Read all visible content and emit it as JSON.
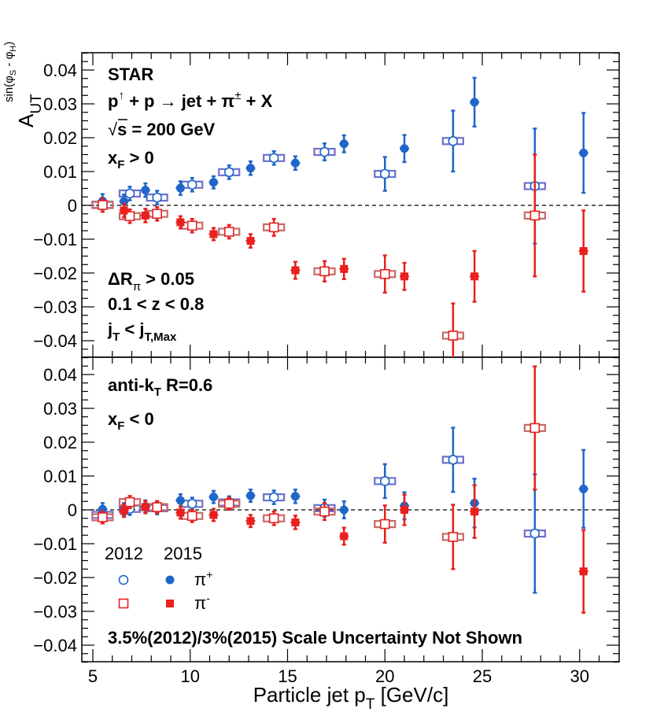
{
  "chart_data": [
    {
      "type": "scatter",
      "panel": "top",
      "xlabel": "",
      "ylabel": "A_UT^sin(φS - φH)",
      "ylim": [
        -0.045,
        0.045
      ],
      "xlim": [
        4.5,
        32
      ],
      "yticks": [
        0.04,
        0.03,
        0.02,
        0.01,
        0,
        -0.01,
        -0.02,
        -0.03,
        -0.04
      ],
      "ytick_labels": [
        "0.04",
        "0.03",
        "0.02",
        "0.01",
        "0",
        "−0.01",
        "−0.02",
        "−0.03",
        "−0.04"
      ],
      "series": [
        {
          "name": "π+ 2012",
          "color": "#1f66c9",
          "marker": "open-circle",
          "sysbox": true,
          "points": [
            [
              5.5,
              0.0002,
              0.002
            ],
            [
              6.9,
              0.0035,
              0.002
            ],
            [
              8.3,
              0.0023,
              0.002
            ],
            [
              10.1,
              0.0061,
              0.002
            ],
            [
              12.0,
              0.0098,
              0.002
            ],
            [
              14.3,
              0.014,
              0.002
            ],
            [
              16.9,
              0.0158,
              0.0025
            ],
            [
              20.0,
              0.0093,
              0.005
            ],
            [
              23.5,
              0.019,
              0.009
            ],
            [
              27.7,
              0.0057,
              0.017
            ]
          ]
        },
        {
          "name": "π+ 2015",
          "color": "#1f66c9",
          "marker": "filled-circle",
          "sysbox": false,
          "points": [
            [
              5.5,
              0.0013,
              0.002
            ],
            [
              6.6,
              0.0012,
              0.002
            ],
            [
              7.7,
              0.0045,
              0.002
            ],
            [
              9.5,
              0.0051,
              0.002
            ],
            [
              11.2,
              0.0068,
              0.0018
            ],
            [
              13.1,
              0.011,
              0.002
            ],
            [
              15.4,
              0.0125,
              0.002
            ],
            [
              17.9,
              0.0182,
              0.0025
            ],
            [
              21.0,
              0.0168,
              0.004
            ],
            [
              24.6,
              0.0305,
              0.0072
            ],
            [
              30.2,
              0.0155,
              0.0118
            ]
          ]
        },
        {
          "name": "π- 2012",
          "color": "#e8201e",
          "marker": "open-square",
          "sysbox": true,
          "points": [
            [
              5.5,
              0.0001,
              0.002
            ],
            [
              6.9,
              -0.0032,
              0.002
            ],
            [
              8.3,
              -0.0025,
              0.002
            ],
            [
              10.1,
              -0.006,
              0.002
            ],
            [
              12.0,
              -0.0078,
              0.002
            ],
            [
              14.3,
              -0.0065,
              0.0025
            ],
            [
              16.9,
              -0.0195,
              0.003
            ],
            [
              20.0,
              -0.0203,
              0.0055
            ],
            [
              23.5,
              -0.0385,
              0.0095
            ],
            [
              27.7,
              -0.003,
              0.018
            ]
          ]
        },
        {
          "name": "π- 2015",
          "color": "#e8201e",
          "marker": "filled-square",
          "sysbox": false,
          "points": [
            [
              6.6,
              -0.0015,
              0.002
            ],
            [
              7.7,
              -0.003,
              0.002
            ],
            [
              9.5,
              -0.005,
              0.0018
            ],
            [
              11.2,
              -0.0085,
              0.0018
            ],
            [
              13.1,
              -0.0105,
              0.002
            ],
            [
              15.4,
              -0.0192,
              0.0025
            ],
            [
              17.9,
              -0.0188,
              0.003
            ],
            [
              21.0,
              -0.021,
              0.004
            ],
            [
              24.6,
              -0.021,
              0.0075
            ],
            [
              30.2,
              -0.0135,
              0.012
            ]
          ]
        }
      ]
    },
    {
      "type": "scatter",
      "panel": "bottom",
      "xlabel": "Particle jet pT [GeV/c]",
      "ylabel": "",
      "ylim": [
        -0.045,
        0.045
      ],
      "xlim": [
        4.5,
        32
      ],
      "yticks": [
        0.04,
        0.03,
        0.02,
        0.01,
        0,
        -0.01,
        -0.02,
        -0.03,
        -0.04
      ],
      "ytick_labels": [
        "0.04",
        "0.03",
        "0.02",
        "0.01",
        "0",
        "−0.01",
        "−0.02",
        "−0.03",
        "−0.04"
      ],
      "xticks": [
        5,
        10,
        15,
        20,
        25,
        30
      ],
      "xtick_labels": [
        "5",
        "10",
        "15",
        "20",
        "25",
        "30"
      ],
      "series": [
        {
          "name": "π+ 2012",
          "color": "#1f66c9",
          "marker": "open-circle",
          "sysbox": true,
          "points": [
            [
              5.5,
              -0.0015,
              0.0018
            ],
            [
              6.9,
              0.0003,
              0.0018
            ],
            [
              8.3,
              0.0005,
              0.0018
            ],
            [
              10.1,
              0.0018,
              0.0018
            ],
            [
              12.0,
              0.0022,
              0.0018
            ],
            [
              14.3,
              0.0037,
              0.002
            ],
            [
              16.9,
              0.0005,
              0.0025
            ],
            [
              20.0,
              0.0085,
              0.005
            ],
            [
              23.5,
              0.0148,
              0.0095
            ],
            [
              27.7,
              -0.007,
              0.0175
            ]
          ]
        },
        {
          "name": "π+ 2015",
          "color": "#1f66c9",
          "marker": "filled-circle",
          "sysbox": false,
          "points": [
            [
              5.5,
              0.0002,
              0.0018
            ],
            [
              6.6,
              0.0002,
              0.0018
            ],
            [
              7.7,
              0.001,
              0.0018
            ],
            [
              9.5,
              0.0028,
              0.0018
            ],
            [
              11.2,
              0.0038,
              0.0018
            ],
            [
              13.1,
              0.0042,
              0.0018
            ],
            [
              15.4,
              0.004,
              0.002
            ],
            [
              17.9,
              0.0,
              0.0025
            ],
            [
              21.0,
              0.0012,
              0.004
            ],
            [
              24.6,
              0.002,
              0.0072
            ],
            [
              30.2,
              0.0062,
              0.0115
            ]
          ]
        },
        {
          "name": "π- 2012",
          "color": "#e8201e",
          "marker": "open-square",
          "sysbox": true,
          "points": [
            [
              5.5,
              -0.0022,
              0.0018
            ],
            [
              6.9,
              0.0023,
              0.0018
            ],
            [
              8.3,
              0.0008,
              0.0018
            ],
            [
              10.1,
              -0.0018,
              0.0018
            ],
            [
              12.0,
              0.0018,
              0.0018
            ],
            [
              14.3,
              -0.0025,
              0.002
            ],
            [
              16.9,
              -0.0005,
              0.0025
            ],
            [
              20.0,
              -0.0042,
              0.0055
            ],
            [
              23.5,
              -0.008,
              0.0095
            ],
            [
              27.7,
              0.0242,
              0.0182
            ]
          ]
        },
        {
          "name": "π- 2015",
          "color": "#e8201e",
          "marker": "filled-square",
          "sysbox": false,
          "points": [
            [
              6.6,
              -0.0003,
              0.0018
            ],
            [
              7.7,
              0.0008,
              0.0018
            ],
            [
              9.5,
              -0.0008,
              0.0018
            ],
            [
              11.2,
              -0.0015,
              0.0018
            ],
            [
              13.1,
              -0.0033,
              0.0018
            ],
            [
              15.4,
              -0.0037,
              0.002
            ],
            [
              17.9,
              -0.0078,
              0.0025
            ],
            [
              21.0,
              0.0,
              0.0045
            ],
            [
              24.6,
              -0.0005,
              0.0078
            ],
            [
              30.2,
              -0.0182,
              0.0122
            ]
          ]
        }
      ]
    }
  ],
  "top_annotations": {
    "experiment": "STAR",
    "reaction_prefix": "p",
    "reaction_arrow_up": "↑",
    "reaction_mid": " + p ",
    "reaction_arrow": "→",
    "reaction_jet": " jet + π",
    "reaction_pm": "±",
    "reaction_tail": " + X",
    "sqrt_symbol": "√",
    "energy": "s = 200 GeV",
    "xf_cut_main": "x",
    "xf_cut_sub": "F",
    "xf_cut_rest": " > 0",
    "dr_cut_main": "ΔR",
    "dr_cut_sub": "π",
    "dr_cut_rest": " > 0.05",
    "z_cut": "0.1 < z < 0.8",
    "jt_main": "j",
    "jt_sub": "T",
    "jt_mid": " < j",
    "jt_sub2": "T,Max"
  },
  "bottom_annotations": {
    "algo_main": "anti-k",
    "algo_sub": "T",
    "algo_rest": " R=0.6",
    "xf_cut_main": "x",
    "xf_cut_sub": "F",
    "xf_cut_rest": " < 0",
    "scale_note": "3.5%(2012)/3%(2015) Scale Uncertainty Not Shown"
  },
  "legend": {
    "header_2012": "2012",
    "header_2015": "2015",
    "pi_plus": "π",
    "pi_plus_sup": "+",
    "pi_minus": "π",
    "pi_minus_sup": "-"
  },
  "axis_title_y": {
    "main": "A",
    "sub": "UT",
    "sup": "sin(φ",
    "sup_s": "S",
    "sup_mid": " - φ",
    "sup_h": "H",
    "sup_end": ")"
  },
  "axis_title_x": {
    "main": "Particle jet p",
    "sub": "T",
    "rest": " [GeV/c]"
  },
  "colors": {
    "pi_plus": "#1f66c9",
    "pi_minus": "#e8201e",
    "box_plus": "#6f6fcf",
    "box_minus": "#c86a6a"
  }
}
